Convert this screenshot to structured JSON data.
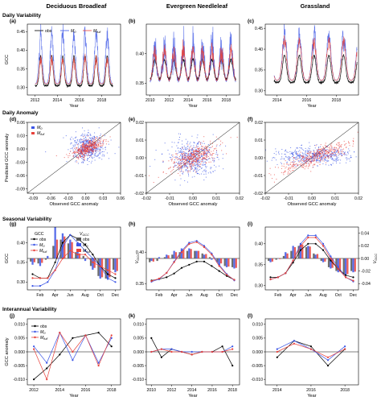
{
  "columns": [
    "Deciduous Broadleaf",
    "Evergreen Needleleaf",
    "Grassland"
  ],
  "rows": [
    "Daily Variability",
    "Daily Anomaly",
    "Seasonal Variability",
    "Interannual Variability"
  ],
  "colors": {
    "obs": "#000000",
    "m0": "#3b55e6",
    "mfull": "#e8423c",
    "grid": "#000000"
  },
  "panel_labels": [
    "(a)",
    "(b)",
    "(c)",
    "(d)",
    "(e)",
    "(f)",
    "(g)",
    "(h)",
    "(i)",
    "(j)",
    "(k)",
    "(l)"
  ],
  "legend": {
    "obs": "obs",
    "m0": "M",
    "m0_sub": "0",
    "mfull": "M",
    "mfull_sub": "full",
    "gcc_title": "GCC",
    "vgcc_title": "V",
    "vgcc_sub": "GCC"
  },
  "chart_data": [
    {
      "id": "a",
      "type": "line",
      "xlabel": "Year",
      "ylabel": "GCC",
      "xlim": [
        2011.3,
        2019.7
      ],
      "ylim": [
        0.28,
        0.47
      ],
      "xticks": [
        "2012",
        "2014",
        "2016",
        "2018"
      ],
      "yticks": [
        "0.30",
        "0.35",
        "0.40",
        "0.45"
      ],
      "series": [
        {
          "name": "obs",
          "start": 2012,
          "years": 7,
          "base": 0.305,
          "peak": 0.385,
          "width": 0.2
        },
        {
          "name": "M0",
          "start": 2012,
          "years": 7,
          "base": 0.31,
          "peak": 0.44,
          "width": 0.24
        },
        {
          "name": "Mfull",
          "start": 2012,
          "years": 7,
          "base": 0.31,
          "peak": 0.375,
          "width": 0.22
        }
      ]
    },
    {
      "id": "b",
      "type": "line",
      "xlabel": "Year",
      "ylabel": "",
      "xlim": [
        2009.6,
        2019.4
      ],
      "ylim": [
        0.33,
        0.45
      ],
      "xticks": [
        "2010",
        "2012",
        "2014",
        "2016",
        "2018"
      ],
      "yticks": [
        "0.35",
        "0.40"
      ],
      "series": [
        {
          "name": "obs",
          "start": 2010,
          "years": 9,
          "base": 0.355,
          "peak": 0.39,
          "width": 0.32
        },
        {
          "name": "M0",
          "start": 2010,
          "years": 9,
          "base": 0.35,
          "peak": 0.41,
          "width": 0.34
        },
        {
          "name": "Mfull",
          "start": 2010,
          "years": 9,
          "base": 0.352,
          "peak": 0.405,
          "width": 0.33
        }
      ]
    },
    {
      "id": "c",
      "type": "line",
      "xlabel": "Year",
      "ylabel": "",
      "xlim": [
        2013.2,
        2019.5
      ],
      "ylim": [
        0.29,
        0.46
      ],
      "xticks": [
        "2014",
        "2016",
        "2018"
      ],
      "yticks": [
        "0.30",
        "0.35",
        "0.40",
        "0.45"
      ],
      "series": [
        {
          "name": "obs",
          "start": 2013.8,
          "years": 5.6,
          "base": 0.32,
          "peak": 0.385,
          "width": 0.22
        },
        {
          "name": "M0",
          "start": 2013.8,
          "years": 5.6,
          "base": 0.325,
          "peak": 0.43,
          "width": 0.24
        },
        {
          "name": "Mfull",
          "start": 2013.8,
          "years": 5.6,
          "base": 0.325,
          "peak": 0.42,
          "width": 0.24
        }
      ]
    },
    {
      "id": "d",
      "type": "scatter",
      "xlabel": "Observed GCC anomaly",
      "ylabel": "Predicted GCC anomaly",
      "xlim": [
        -0.1,
        0.06
      ],
      "ylim": [
        -0.1,
        0.06
      ],
      "xticks": [
        "-0.09",
        "-0.06",
        "-0.03",
        "0.00",
        "0.03",
        "0.06"
      ],
      "yticks": [
        "-0.09",
        "-0.06",
        "-0.03",
        "0.00",
        "0.03",
        "0.06"
      ],
      "clouds": [
        {
          "name": "M0",
          "cx": 0.003,
          "cy": 0.002,
          "sx": 0.012,
          "sy": 0.016,
          "n": 500
        },
        {
          "name": "Mfull",
          "cx": 0.003,
          "cy": 0.002,
          "sx": 0.011,
          "sy": 0.008,
          "n": 400
        }
      ]
    },
    {
      "id": "e",
      "type": "scatter",
      "xlabel": "Observed GCC anomaly",
      "ylabel": "",
      "xlim": [
        -0.02,
        0.02
      ],
      "ylim": [
        -0.02,
        0.02
      ],
      "xticks": [
        "-0.02",
        "-0.01",
        "0.00",
        "0.01",
        "0.02"
      ],
      "yticks": [
        "-0.02",
        "-0.01",
        "0.00",
        "0.01",
        "0.02"
      ],
      "clouds": [
        {
          "name": "M0",
          "cx": 0.0,
          "cy": 0.0,
          "sx": 0.0045,
          "sy": 0.005,
          "n": 500
        },
        {
          "name": "Mfull",
          "cx": 0.0,
          "cy": 0.0,
          "sx": 0.0045,
          "sy": 0.003,
          "n": 400
        }
      ]
    },
    {
      "id": "f",
      "type": "scatter",
      "xlabel": "Observed GCC anomaly",
      "ylabel": "",
      "xlim": [
        -0.02,
        0.02
      ],
      "ylim": [
        -0.02,
        0.02
      ],
      "xticks": [
        "-0.02",
        "-0.01",
        "0.00",
        "0.01",
        "0.02"
      ],
      "yticks": [
        "-0.02",
        "-0.01",
        "0.00",
        "0.01",
        "0.02"
      ],
      "clouds": [
        {
          "name": "M0",
          "cx": 0.002,
          "cy": 0.001,
          "sx": 0.0075,
          "sy": 0.0025,
          "n": 500
        },
        {
          "name": "Mfull",
          "cx": 0.002,
          "cy": 0.001,
          "sx": 0.0075,
          "sy": 0.0022,
          "n": 400
        }
      ]
    },
    {
      "id": "g",
      "type": "bar",
      "xlabel": "",
      "ylabel": "GCC",
      "y2label": "VGCC",
      "categories": [
        "Jan",
        "Feb",
        "Mar",
        "Apr",
        "May",
        "Jun",
        "Jul",
        "Aug",
        "Sep",
        "Oct",
        "Nov",
        "Dec"
      ],
      "xticks": [
        "Feb",
        "Apr",
        "Jun",
        "Aug",
        "Oct",
        "Dec"
      ],
      "ylim": [
        0.28,
        0.44
      ],
      "yticks": [
        "0.30",
        "0.35",
        "0.40"
      ],
      "y2lim": [
        -0.05,
        0.05
      ],
      "lines": [
        {
          "name": "obs",
          "values": [
            0.32,
            0.31,
            0.31,
            0.35,
            0.4,
            0.42,
            0.41,
            0.395,
            0.37,
            0.34,
            0.32,
            0.31
          ]
        },
        {
          "name": "M0",
          "values": [
            0.29,
            0.29,
            0.3,
            0.33,
            0.39,
            0.42,
            0.4,
            0.38,
            0.36,
            0.34,
            0.31,
            0.3
          ]
        },
        {
          "name": "Mfull",
          "values": [
            0.31,
            0.31,
            0.31,
            0.33,
            0.36,
            0.38,
            0.37,
            0.37,
            0.35,
            0.34,
            0.33,
            0.32
          ]
        }
      ],
      "bars": [
        {
          "name": "obs",
          "values": [
            -0.005,
            -0.008,
            -0.002,
            0.02,
            0.03,
            0.024,
            0.01,
            0.004,
            -0.012,
            -0.028,
            -0.032,
            -0.018
          ]
        },
        {
          "name": "M0",
          "values": [
            -0.01,
            -0.012,
            0.004,
            0.05,
            0.04,
            0.03,
            0.012,
            -0.004,
            -0.018,
            -0.032,
            -0.034,
            -0.022
          ]
        },
        {
          "name": "Mfull",
          "values": [
            -0.006,
            -0.007,
            0.0,
            0.03,
            0.035,
            0.026,
            0.008,
            0.0,
            -0.015,
            -0.03,
            -0.03,
            -0.02
          ]
        }
      ]
    },
    {
      "id": "h",
      "type": "bar",
      "xlabel": "",
      "ylabel": "",
      "categories": [
        "Jan",
        "Feb",
        "Mar",
        "Apr",
        "May",
        "Jun",
        "Jul",
        "Aug",
        "Sep",
        "Oct",
        "Nov",
        "Dec"
      ],
      "xticks": [
        "Feb",
        "Apr",
        "Jun",
        "Aug",
        "Oct",
        "Dec"
      ],
      "ylim": [
        0.34,
        0.44
      ],
      "yticks": [
        "0.35",
        "0.40"
      ],
      "y2lim": [
        -0.05,
        0.05
      ],
      "lines": [
        {
          "name": "obs",
          "values": [
            0.355,
            0.357,
            0.36,
            0.366,
            0.375,
            0.38,
            0.385,
            0.385,
            0.378,
            0.37,
            0.362,
            0.356
          ]
        },
        {
          "name": "M0",
          "values": [
            0.353,
            0.357,
            0.367,
            0.385,
            0.402,
            0.415,
            0.418,
            0.41,
            0.398,
            0.38,
            0.365,
            0.355
          ]
        },
        {
          "name": "Mfull",
          "values": [
            0.354,
            0.358,
            0.367,
            0.384,
            0.4,
            0.413,
            0.416,
            0.408,
            0.396,
            0.378,
            0.364,
            0.356
          ]
        }
      ],
      "bars": [
        {
          "name": "obs",
          "values": [
            -0.006,
            -0.004,
            0.002,
            0.006,
            0.01,
            0.012,
            0.012,
            0.008,
            0.002,
            -0.006,
            -0.012,
            -0.014
          ]
        },
        {
          "name": "M0",
          "values": [
            -0.004,
            0.002,
            0.006,
            0.012,
            0.016,
            0.016,
            0.012,
            0.006,
            -0.002,
            -0.01,
            -0.014,
            -0.016
          ]
        },
        {
          "name": "Mfull",
          "values": [
            -0.005,
            0.0,
            0.005,
            0.01,
            0.014,
            0.015,
            0.012,
            0.007,
            0.0,
            -0.008,
            -0.013,
            -0.015
          ]
        }
      ]
    },
    {
      "id": "i",
      "type": "bar",
      "xlabel": "",
      "ylabel": "",
      "y2label": "VGCC",
      "categories": [
        "Jan",
        "Feb",
        "Mar",
        "Apr",
        "May",
        "Jun",
        "Jul",
        "Aug",
        "Sep",
        "Oct",
        "Nov",
        "Dec"
      ],
      "xticks": [
        "Feb",
        "Apr",
        "Jun",
        "Aug",
        "Oct",
        "Dec"
      ],
      "ylim": [
        0.29,
        0.44
      ],
      "yticks": [
        "0.30",
        "0.35",
        "0.40"
      ],
      "y2lim": [
        -0.05,
        0.05
      ],
      "y2ticks": [
        "-0.04",
        "-0.02",
        "0.00",
        "0.02",
        "0.04"
      ],
      "lines": [
        {
          "name": "obs",
          "values": [
            0.32,
            0.32,
            0.33,
            0.355,
            0.385,
            0.4,
            0.4,
            0.385,
            0.36,
            0.34,
            0.325,
            0.32
          ]
        },
        {
          "name": "M0",
          "values": [
            0.315,
            0.32,
            0.33,
            0.36,
            0.4,
            0.42,
            0.42,
            0.4,
            0.37,
            0.345,
            0.32,
            0.31
          ]
        },
        {
          "name": "Mfull",
          "values": [
            0.315,
            0.32,
            0.33,
            0.36,
            0.395,
            0.415,
            0.415,
            0.395,
            0.365,
            0.34,
            0.32,
            0.312
          ]
        }
      ],
      "bars": [
        {
          "name": "obs",
          "values": [
            -0.004,
            -0.002,
            0.004,
            0.012,
            0.02,
            0.018,
            0.008,
            -0.004,
            -0.014,
            -0.02,
            -0.024,
            -0.02
          ]
        },
        {
          "name": "M0",
          "values": [
            -0.006,
            0.0,
            0.01,
            0.02,
            0.024,
            0.02,
            0.006,
            -0.006,
            -0.016,
            -0.022,
            -0.026,
            -0.022
          ]
        },
        {
          "name": "Mfull",
          "values": [
            -0.005,
            -0.001,
            0.008,
            0.018,
            0.022,
            0.019,
            0.007,
            -0.005,
            -0.015,
            -0.021,
            -0.025,
            -0.021
          ]
        }
      ]
    },
    {
      "id": "j",
      "type": "line",
      "xlabel": "Year",
      "ylabel": "GCC anomaly",
      "xlim": [
        2011.5,
        2018.7
      ],
      "ylim": [
        -0.012,
        0.012
      ],
      "xticks": [
        "2012",
        "2014",
        "2016",
        "2018"
      ],
      "yticks": [
        "-0.010",
        "-0.005",
        "0.000",
        "0.005",
        "0.010"
      ],
      "x": [
        2012,
        2013,
        2014,
        2015,
        2016,
        2017,
        2018
      ],
      "series": [
        {
          "name": "obs",
          "values": [
            -0.01,
            -0.006,
            -0.001,
            0.005,
            0.006,
            0.007,
            0.002
          ]
        },
        {
          "name": "M0",
          "values": [
            0.002,
            -0.004,
            0.007,
            -0.003,
            0.006,
            -0.004,
            0.005
          ]
        },
        {
          "name": "Mfull",
          "values": [
            0.001,
            -0.01,
            0.007,
            0.0,
            0.006,
            -0.005,
            0.006
          ]
        }
      ]
    },
    {
      "id": "k",
      "type": "line",
      "xlabel": "Year",
      "ylabel": "",
      "xlim": [
        2009.5,
        2018.7
      ],
      "ylim": [
        -0.012,
        0.012
      ],
      "xticks": [
        "2010",
        "2012",
        "2014",
        "2016",
        "2018"
      ],
      "yticks": [
        "-0.010",
        "-0.005",
        "0.000",
        "0.005",
        "0.010"
      ],
      "x": [
        2010,
        2011,
        2012,
        2013,
        2014,
        2015,
        2016,
        2017,
        2018
      ],
      "series": [
        {
          "name": "obs",
          "values": [
            0.005,
            -0.002,
            0.001,
            0.0,
            -0.001,
            0.0,
            0.0,
            0.002,
            -0.005
          ]
        },
        {
          "name": "M0",
          "values": [
            0.0,
            0.001,
            0.001,
            0.0,
            0.0,
            0.0,
            0.0,
            0.0,
            0.002
          ]
        },
        {
          "name": "Mfull",
          "values": [
            0.0,
            0.001,
            0.0,
            0.0,
            -0.001,
            0.0,
            0.0,
            0.0,
            0.001
          ]
        }
      ]
    },
    {
      "id": "l",
      "type": "line",
      "xlabel": "Year",
      "ylabel": "",
      "xlim": [
        2013.3,
        2018.8
      ],
      "ylim": [
        -0.012,
        0.012
      ],
      "xticks": [
        "2014",
        "2016",
        "2018"
      ],
      "yticks": [
        "-0.010",
        "-0.005",
        "0.000",
        "0.005",
        "0.010"
      ],
      "x": [
        2014,
        2015,
        2016,
        2017,
        2018
      ],
      "series": [
        {
          "name": "obs",
          "values": [
            -0.002,
            0.004,
            0.002,
            -0.005,
            0.001
          ]
        },
        {
          "name": "M0",
          "values": [
            0.001,
            0.004,
            0.001,
            -0.003,
            0.002
          ]
        },
        {
          "name": "Mfull",
          "values": [
            0.0,
            0.003,
            0.001,
            -0.002,
            0.001
          ]
        }
      ]
    }
  ]
}
